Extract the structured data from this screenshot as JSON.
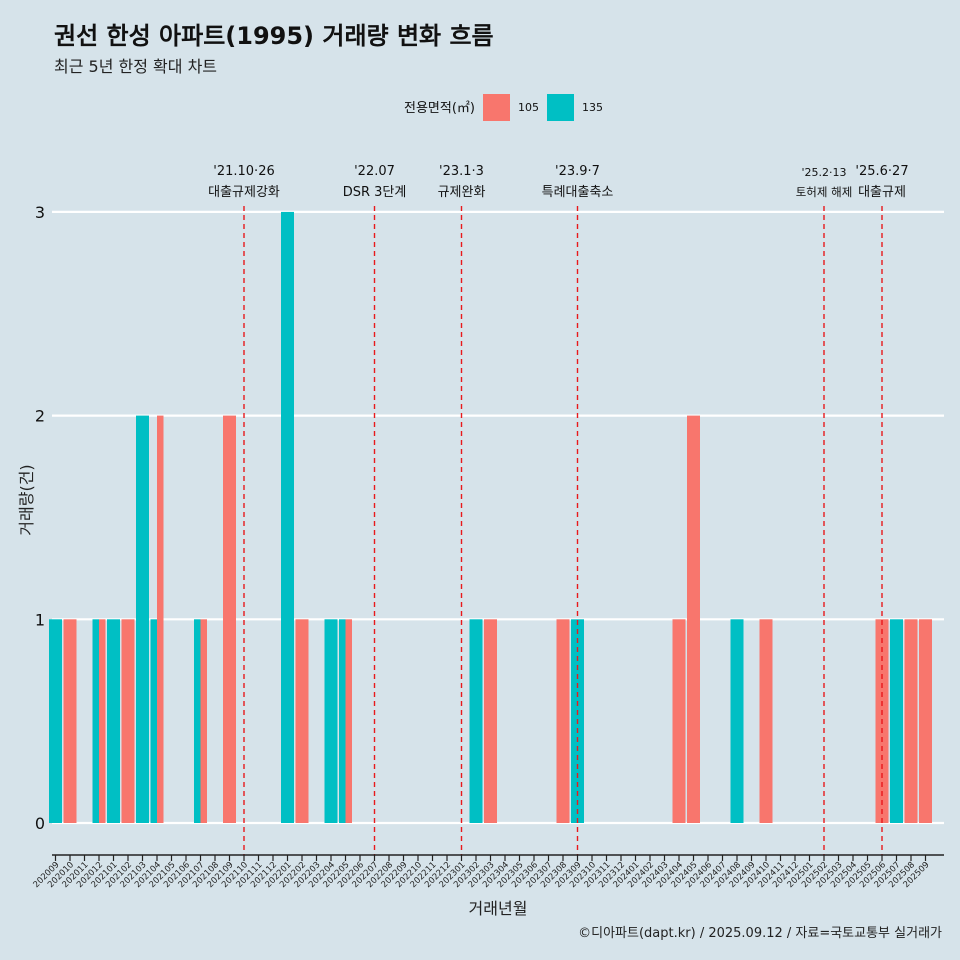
{
  "title": "권선 한성 아파트(1995) 거래량 변화 흐름",
  "subtitle": "최근 5년 한정 확대 차트",
  "caption": "©디아파트(dapt.kr) / 2025.09.12 / 자료=국토교통부 실거래가",
  "colors": {
    "background": "#d6e3ea",
    "s105": "#f8766d",
    "s135": "#00bfc4",
    "event_line": "#e8191c",
    "grid": "#ffffff"
  },
  "chart_data": {
    "type": "bar",
    "xlabel": "거래년월",
    "ylabel": "거래량(건)",
    "ylim": [
      0,
      3
    ],
    "y_ticks": [
      0,
      1,
      2,
      3
    ],
    "legend": {
      "title": "전용면적(㎡)",
      "placement": "top"
    },
    "grid": true,
    "categories": [
      "202009",
      "202010",
      "202011",
      "202012",
      "202101",
      "202102",
      "202103",
      "202104",
      "202105",
      "202106",
      "202107",
      "202108",
      "202109",
      "202110",
      "202111",
      "202112",
      "202201",
      "202202",
      "202203",
      "202204",
      "202205",
      "202206",
      "202207",
      "202208",
      "202209",
      "202210",
      "202211",
      "202212",
      "202301",
      "202302",
      "202303",
      "202304",
      "202305",
      "202306",
      "202307",
      "202308",
      "202309",
      "202310",
      "202311",
      "202312",
      "202401",
      "202402",
      "202403",
      "202404",
      "202405",
      "202406",
      "202407",
      "202408",
      "202409",
      "202410",
      "202411",
      "202412",
      "202501",
      "202502",
      "202503",
      "202504",
      "202505",
      "202506",
      "202507",
      "202508",
      "202509"
    ],
    "series": [
      {
        "name": "105",
        "color": "#f8766d",
        "values": [
          0,
          1,
          0,
          1,
          0,
          1,
          0,
          2,
          0,
          0,
          1,
          0,
          2,
          0,
          0,
          0,
          0,
          1,
          0,
          0,
          1,
          0,
          0,
          0,
          0,
          0,
          0,
          0,
          0,
          0,
          1,
          0,
          0,
          0,
          0,
          1,
          0,
          0,
          0,
          0,
          0,
          0,
          0,
          1,
          2,
          0,
          0,
          0,
          0,
          1,
          0,
          0,
          0,
          0,
          0,
          0,
          0,
          1,
          0,
          1,
          1
        ]
      },
      {
        "name": "135",
        "color": "#00bfc4",
        "values": [
          1,
          0,
          0,
          1,
          1,
          0,
          2,
          1,
          0,
          0,
          1,
          0,
          0,
          0,
          0,
          0,
          3,
          0,
          0,
          1,
          1,
          0,
          0,
          0,
          0,
          0,
          0,
          0,
          0,
          1,
          0,
          0,
          0,
          0,
          0,
          0,
          1,
          0,
          0,
          0,
          0,
          0,
          0,
          0,
          0,
          0,
          0,
          1,
          0,
          0,
          0,
          0,
          0,
          0,
          0,
          0,
          0,
          0,
          1,
          0,
          0
        ]
      }
    ],
    "events": [
      {
        "month": "202110",
        "date": "'21.10·26",
        "label": "대출규제강화"
      },
      {
        "month": "202207",
        "date": "'22.07",
        "label": "DSR 3단계"
      },
      {
        "month": "202301",
        "date": "'23.1·3",
        "label": "규제완화"
      },
      {
        "month": "202309",
        "date": "'23.9·7",
        "label": "특례대출축소"
      },
      {
        "month": "202502",
        "date": "'25.2·13",
        "label": "토허제 해제"
      },
      {
        "month": "202506",
        "date": "'25.6·27",
        "label": "대출규제"
      }
    ]
  }
}
